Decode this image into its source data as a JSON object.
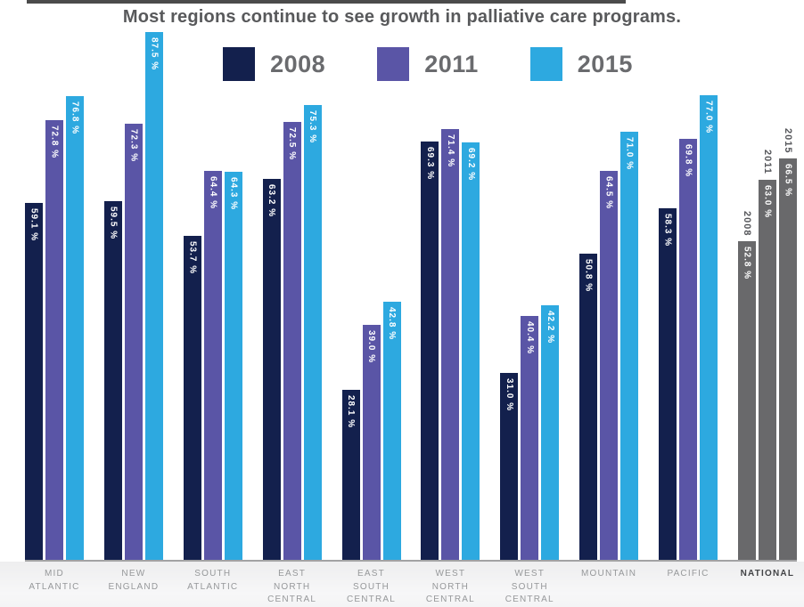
{
  "title": "Most regions continue to see growth in palliative care programs.",
  "chart_data": {
    "type": "bar",
    "title": "Most regions continue to see growth in palliative care programs.",
    "unit": "%",
    "value_suffix": " %",
    "ylim": [
      0,
      100
    ],
    "grid": false,
    "legend_position": "top-center",
    "categories": [
      "MID\nATLANTIC",
      "NEW\nENGLAND",
      "SOUTH\nATLANTIC",
      "EAST\nNORTH\nCENTRAL",
      "EAST\nSOUTH\nCENTRAL",
      "WEST\nNORTH\nCENTRAL",
      "WEST\nSOUTH\nCENTRAL",
      "MOUNTAIN",
      "PACIFIC",
      "NATIONAL"
    ],
    "series": [
      {
        "name": "2008",
        "color": "#13204d",
        "values": [
          59.1,
          59.5,
          53.7,
          63.2,
          28.1,
          69.3,
          31.0,
          50.8,
          58.3,
          52.8
        ]
      },
      {
        "name": "2011",
        "color": "#5a55a6",
        "values": [
          72.8,
          72.3,
          64.4,
          72.5,
          39.0,
          71.4,
          40.4,
          64.5,
          69.8,
          63.0
        ]
      },
      {
        "name": "2015",
        "color": "#2da9e0",
        "values": [
          76.8,
          87.5,
          64.3,
          75.3,
          42.8,
          69.2,
          42.2,
          71.0,
          77.0,
          66.5
        ]
      }
    ],
    "national_index": 9,
    "national_color": "#69696b",
    "national_shows_year_labels": true
  },
  "style": {
    "value_text_color": "#ffffff",
    "baseline_color": "#a2a2a3",
    "title_color": "#58595b",
    "legend_text_color": "#6a6b6e"
  }
}
